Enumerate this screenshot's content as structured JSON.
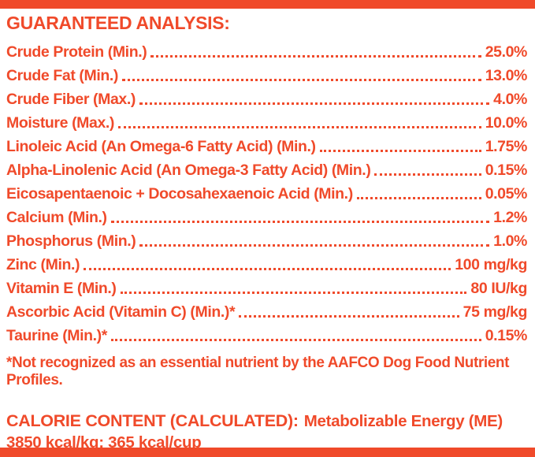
{
  "panel": {
    "accent_color": "#f04a2a",
    "title": "GUARANTEED ANALYSIS:",
    "rows": [
      {
        "label": "Crude Protein (Min.)",
        "value": "25.0%"
      },
      {
        "label": "Crude Fat (Min.)",
        "value": "13.0%"
      },
      {
        "label": "Crude Fiber (Max.)",
        "value": "4.0%"
      },
      {
        "label": "Moisture (Max.)",
        "value": "10.0%"
      },
      {
        "label": "Linoleic Acid (An Omega-6 Fatty Acid) (Min.)",
        "value": "1.75%"
      },
      {
        "label": "Alpha-Linolenic Acid (An Omega-3 Fatty Acid) (Min.)",
        "value": "0.15%"
      },
      {
        "label": "Eicosapentaenoic + Docosahexaenoic Acid (Min.)",
        "value": "0.05%"
      },
      {
        "label": "Calcium (Min.)",
        "value": "1.2%"
      },
      {
        "label": "Phosphorus (Min.)",
        "value": "1.0%"
      },
      {
        "label": "Zinc (Min.)",
        "value": "100 mg/kg"
      },
      {
        "label": "Vitamin E (Min.)",
        "value": "80 IU/kg"
      },
      {
        "label": "Ascorbic Acid (Vitamin C) (Min.)*",
        "value": "75 mg/kg"
      },
      {
        "label": "Taurine (Min.)*",
        "value": "0.15%"
      }
    ],
    "footnote": "*Not recognized as an essential nutrient by the AAFCO Dog Food Nutrient Profiles.",
    "calorie_heading": "CALORIE CONTENT (CALCULATED):",
    "calorie_text": "Metabolizable Energy (ME) 3850 kcal/kg; 365 kcal/cup"
  }
}
